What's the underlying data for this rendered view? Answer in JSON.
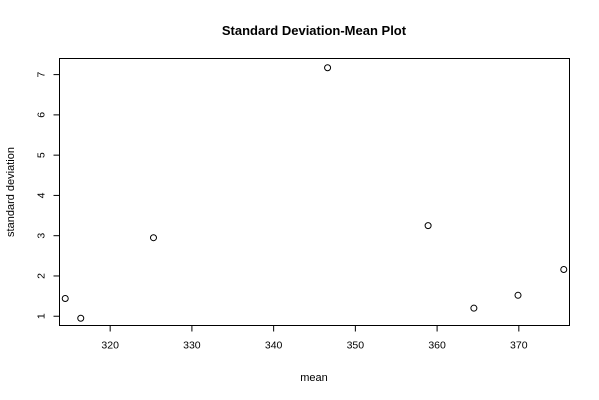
{
  "chart_data": {
    "type": "scatter",
    "title": "Standard Deviation-Mean Plot",
    "xlabel": "mean",
    "ylabel": "standard deviation",
    "xlim": [
      313.8,
      376.2
    ],
    "ylim": [
      0.77,
      7.4
    ],
    "x_ticks": [
      320,
      330,
      340,
      350,
      360,
      370
    ],
    "y_ticks": [
      1,
      2,
      3,
      4,
      5,
      6,
      7
    ],
    "grid": false,
    "marker": "open-circle",
    "points": [
      {
        "x": 314.5,
        "y": 1.44
      },
      {
        "x": 316.4,
        "y": 0.95
      },
      {
        "x": 325.3,
        "y": 2.95
      },
      {
        "x": 346.6,
        "y": 7.17
      },
      {
        "x": 358.9,
        "y": 3.25
      },
      {
        "x": 364.5,
        "y": 1.2
      },
      {
        "x": 369.9,
        "y": 1.52
      },
      {
        "x": 375.5,
        "y": 2.16
      }
    ]
  }
}
